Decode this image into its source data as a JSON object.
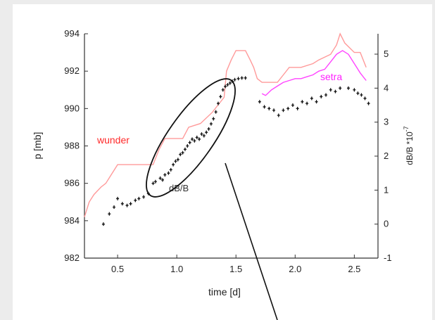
{
  "chart_data": {
    "type": "line",
    "xlabel": "time [d]",
    "ylabel_left": "p [mb]",
    "ylabel_right": "dB/B *10",
    "ylabel_right_exponent": "-7",
    "xlim": [
      0.22,
      2.7
    ],
    "ylim_left": [
      982,
      994
    ],
    "ylim_right": [
      -1,
      5.6
    ],
    "x_ticks": [
      "0.5",
      "1.0",
      "1.5",
      "2.0",
      "2.5"
    ],
    "x_tick_values": [
      0.5,
      1.0,
      1.5,
      2.0,
      2.5
    ],
    "y_left_ticks": [
      "982",
      "984",
      "986",
      "988",
      "990",
      "992",
      "994"
    ],
    "y_left_tick_values": [
      982,
      984,
      986,
      988,
      990,
      992,
      994
    ],
    "y_right_ticks": [
      "-1",
      "0",
      "1",
      "2",
      "3",
      "4",
      "5"
    ],
    "y_right_tick_values": [
      -1,
      0,
      1,
      2,
      3,
      4,
      5
    ],
    "series": [
      {
        "name": "wunder",
        "color": "#ff9a9a",
        "axis": "left",
        "x": [
          0.22,
          0.26,
          0.3,
          0.36,
          0.4,
          0.45,
          0.5,
          0.8,
          0.85,
          0.9,
          1.05,
          1.1,
          1.2,
          1.3,
          1.35,
          1.4,
          1.42,
          1.46,
          1.5,
          1.58,
          1.62,
          1.65,
          1.68,
          1.72,
          1.85,
          1.9,
          1.95,
          2.05,
          2.15,
          2.2,
          2.3,
          2.35,
          2.38,
          2.42,
          2.5,
          2.55,
          2.6
        ],
        "y": [
          984.2,
          985.0,
          985.4,
          985.8,
          986.0,
          986.5,
          987.0,
          987.0,
          987.8,
          988.4,
          988.4,
          989.0,
          989.2,
          989.8,
          990.2,
          990.6,
          992.0,
          992.6,
          993.1,
          993.1,
          992.6,
          992.2,
          991.6,
          991.4,
          991.4,
          991.8,
          992.2,
          992.2,
          992.4,
          992.6,
          992.9,
          993.4,
          994.0,
          993.5,
          993.0,
          993.0,
          992.2
        ]
      },
      {
        "name": "setra",
        "color": "#ff44ff",
        "axis": "left",
        "x": [
          1.72,
          1.75,
          1.8,
          1.85,
          1.9,
          1.95,
          2.0,
          2.05,
          2.1,
          2.15,
          2.2,
          2.25,
          2.3,
          2.35,
          2.4,
          2.45,
          2.5,
          2.55,
          2.6
        ],
        "y": [
          990.8,
          990.7,
          991.0,
          991.2,
          991.4,
          991.5,
          991.6,
          991.6,
          991.7,
          991.8,
          992.0,
          992.1,
          992.5,
          992.9,
          993.1,
          992.9,
          992.4,
          991.9,
          991.5
        ]
      },
      {
        "name": "dB/B",
        "color": "#111111",
        "axis": "right",
        "marker": "cross",
        "x": [
          0.38,
          0.43,
          0.47,
          0.5,
          0.54,
          0.58,
          0.61,
          0.65,
          0.68,
          0.72,
          0.76,
          0.8,
          0.82,
          0.86,
          0.88,
          0.9,
          0.93,
          0.95,
          0.97,
          0.99,
          1.01,
          1.03,
          1.05,
          1.07,
          1.09,
          1.11,
          1.13,
          1.15,
          1.17,
          1.19,
          1.21,
          1.23,
          1.25,
          1.27,
          1.29,
          1.31,
          1.33,
          1.35,
          1.37,
          1.39,
          1.41,
          1.43,
          1.45,
          1.47,
          1.49,
          1.52,
          1.55,
          1.58,
          1.7,
          1.74,
          1.78,
          1.82,
          1.86,
          1.9,
          1.94,
          1.98,
          2.02,
          2.06,
          2.1,
          2.14,
          2.18,
          2.22,
          2.26,
          2.3,
          2.34,
          2.38,
          2.45,
          2.5,
          2.53,
          2.56,
          2.59,
          2.62
        ],
        "y": [
          0.0,
          0.3,
          0.5,
          0.75,
          0.6,
          0.55,
          0.6,
          0.7,
          0.75,
          0.8,
          0.9,
          1.2,
          1.25,
          1.35,
          1.3,
          1.45,
          1.5,
          1.6,
          1.75,
          1.85,
          1.9,
          2.05,
          2.1,
          2.2,
          2.3,
          2.4,
          2.5,
          2.45,
          2.55,
          2.5,
          2.65,
          2.6,
          2.7,
          2.8,
          2.95,
          3.1,
          3.3,
          3.55,
          3.75,
          3.95,
          4.05,
          4.1,
          4.15,
          4.2,
          4.25,
          4.28,
          4.3,
          4.3,
          3.6,
          3.45,
          3.4,
          3.35,
          3.2,
          3.35,
          3.4,
          3.5,
          3.4,
          3.6,
          3.55,
          3.7,
          3.6,
          3.75,
          3.8,
          3.95,
          3.9,
          4.0,
          4.0,
          3.95,
          3.85,
          3.8,
          3.7,
          3.55
        ]
      }
    ],
    "annotations": [
      {
        "text": "wunder",
        "color": "#ff2a2a"
      },
      {
        "text": "setra",
        "color": "#ff22ff"
      },
      {
        "text": "dB/B",
        "color": "#333333"
      }
    ],
    "grid": false,
    "legend": "none"
  }
}
